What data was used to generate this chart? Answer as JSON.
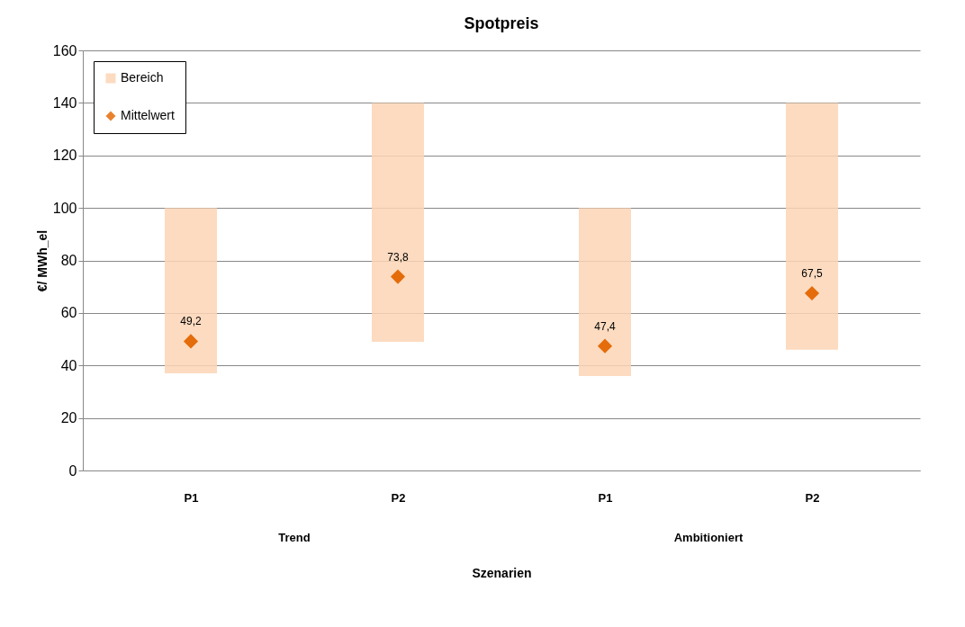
{
  "chart_data": {
    "type": "bar",
    "title": "Spotpreis",
    "xlabel": "Szenarien",
    "ylabel": "€/ MWh_el",
    "categories": [
      "P1",
      "P2",
      "P1",
      "P2"
    ],
    "annotations": [
      "Trend",
      "Ambitioniert"
    ],
    "series": [
      {
        "name": "Bereich",
        "color": "#fcd5b5",
        "base": [
          37,
          49,
          36,
          46
        ],
        "values": [
          63,
          91,
          64,
          94
        ]
      },
      {
        "name": "Mittelwert",
        "type": "scatter",
        "color": "#e46c0a",
        "marker": "diamond",
        "values": [
          49.2,
          73.8,
          47.4,
          67.5
        ],
        "value_labels": [
          "49,2",
          "73,8",
          "47,4",
          "67,5"
        ]
      }
    ],
    "ylim": [
      0,
      160
    ],
    "yticks": [
      0,
      20,
      40,
      60,
      80,
      100,
      120,
      140,
      160
    ],
    "grid": "y",
    "legend": "top left"
  }
}
